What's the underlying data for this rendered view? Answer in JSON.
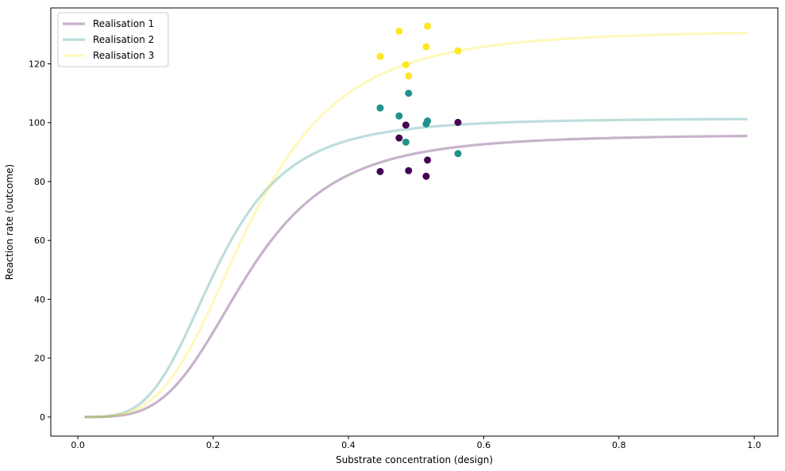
{
  "chart_data": {
    "type": "line",
    "title": "",
    "xlabel": "Substrate concentration (design)",
    "ylabel": "Reaction rate (outcome)",
    "xlim": [
      -0.04,
      1.035
    ],
    "ylim": [
      -6.5,
      139
    ],
    "xticks": [
      0.0,
      0.2,
      0.4,
      0.6,
      0.8,
      1.0
    ],
    "xtick_labels": [
      "0.0",
      "0.2",
      "0.4",
      "0.6",
      "0.8",
      "1.0"
    ],
    "yticks": [
      0,
      20,
      40,
      60,
      80,
      100,
      120
    ],
    "ytick_labels": [
      "0",
      "20",
      "40",
      "60",
      "80",
      "100",
      "120"
    ],
    "grid": false,
    "legend_position": "top-left",
    "curve_x_range": [
      0.01,
      0.99
    ],
    "series": [
      {
        "name": "Realisation 1",
        "color": "#440154",
        "curve_model": "hill",
        "vmax": 96,
        "k": 0.25,
        "n": 3.8,
        "points": [
          [
            0.447,
            83.4
          ],
          [
            0.475,
            94.8
          ],
          [
            0.485,
            99.2
          ],
          [
            0.489,
            83.7
          ],
          [
            0.515,
            81.8
          ],
          [
            0.517,
            87.3
          ],
          [
            0.562,
            100.1
          ]
        ]
      },
      {
        "name": "Realisation 2",
        "color": "#21918c",
        "curve_model": "hill",
        "vmax": 101.5,
        "k": 0.2056,
        "n": 3.8,
        "points": [
          [
            0.447,
            105.0
          ],
          [
            0.475,
            102.3
          ],
          [
            0.485,
            93.4
          ],
          [
            0.489,
            110.0
          ],
          [
            0.515,
            99.6
          ],
          [
            0.517,
            100.6
          ],
          [
            0.562,
            89.5
          ]
        ]
      },
      {
        "name": "Realisation 3",
        "color": "#fde725",
        "curve_model": "hill",
        "vmax": 131.5,
        "k": 0.254,
        "n": 3.6,
        "points": [
          [
            0.447,
            122.5
          ],
          [
            0.475,
            131.1
          ],
          [
            0.485,
            119.7
          ],
          [
            0.489,
            115.9
          ],
          [
            0.515,
            125.8
          ],
          [
            0.517,
            132.8
          ],
          [
            0.562,
            124.4
          ]
        ]
      }
    ]
  }
}
